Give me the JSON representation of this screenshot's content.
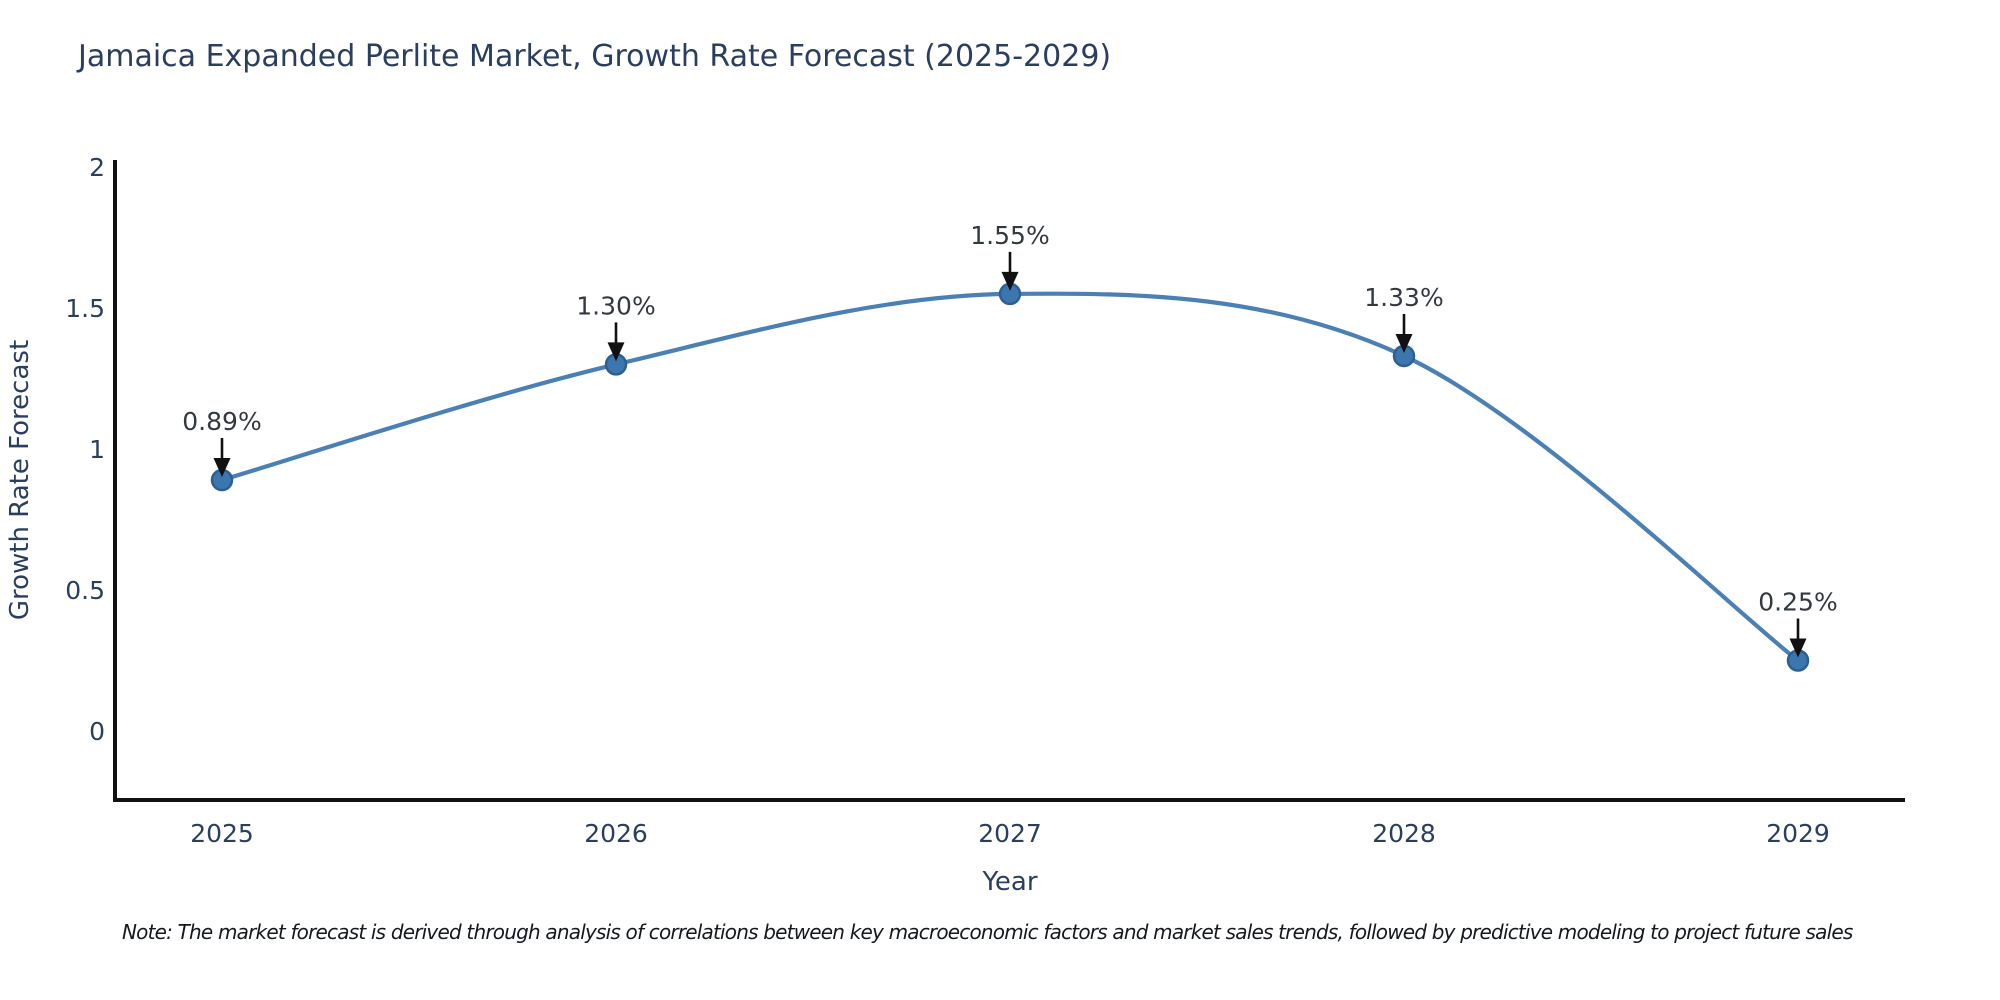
{
  "page": {
    "note": "Note: The market forecast is derived through analysis of correlations between key macroeconomic factors and market sales trends, followed by predictive modeling to project future sales"
  },
  "chart_data": {
    "type": "line",
    "title": "Jamaica Expanded Perlite Market, Growth Rate Forecast (2025-2029)",
    "xlabel": "Year",
    "ylabel": "Growth Rate Forecast",
    "categories": [
      "2025",
      "2026",
      "2027",
      "2028",
      "2029"
    ],
    "series": [
      {
        "name": "Growth Rate Forecast",
        "values": [
          0.89,
          1.3,
          1.55,
          1.33,
          0.25
        ],
        "point_labels": [
          "0.89%",
          "1.30%",
          "1.55%",
          "1.33%",
          "0.25%"
        ]
      }
    ],
    "line_shape": "spline",
    "markers": true,
    "annotation_arrows": true,
    "y_ticks": [
      0,
      0.5,
      1,
      1.5,
      2
    ],
    "y_tick_labels": [
      "0",
      "0.5",
      "1",
      "1.5",
      "2"
    ],
    "ylim": [
      -0.245,
      2.025
    ],
    "xlim": [
      2024.73,
      2029.27
    ],
    "grid": false,
    "legend": "none",
    "colors": {
      "line": "#4a80b4",
      "marker_fill": "#3c76ae",
      "marker_edge": "#2e5f93",
      "axis_line": "#111111",
      "chart_text": "#2a3f5f",
      "annotation_text": "#333940",
      "arrow": "#111111",
      "note_text": "#15181e",
      "background": "#ffffff"
    }
  }
}
